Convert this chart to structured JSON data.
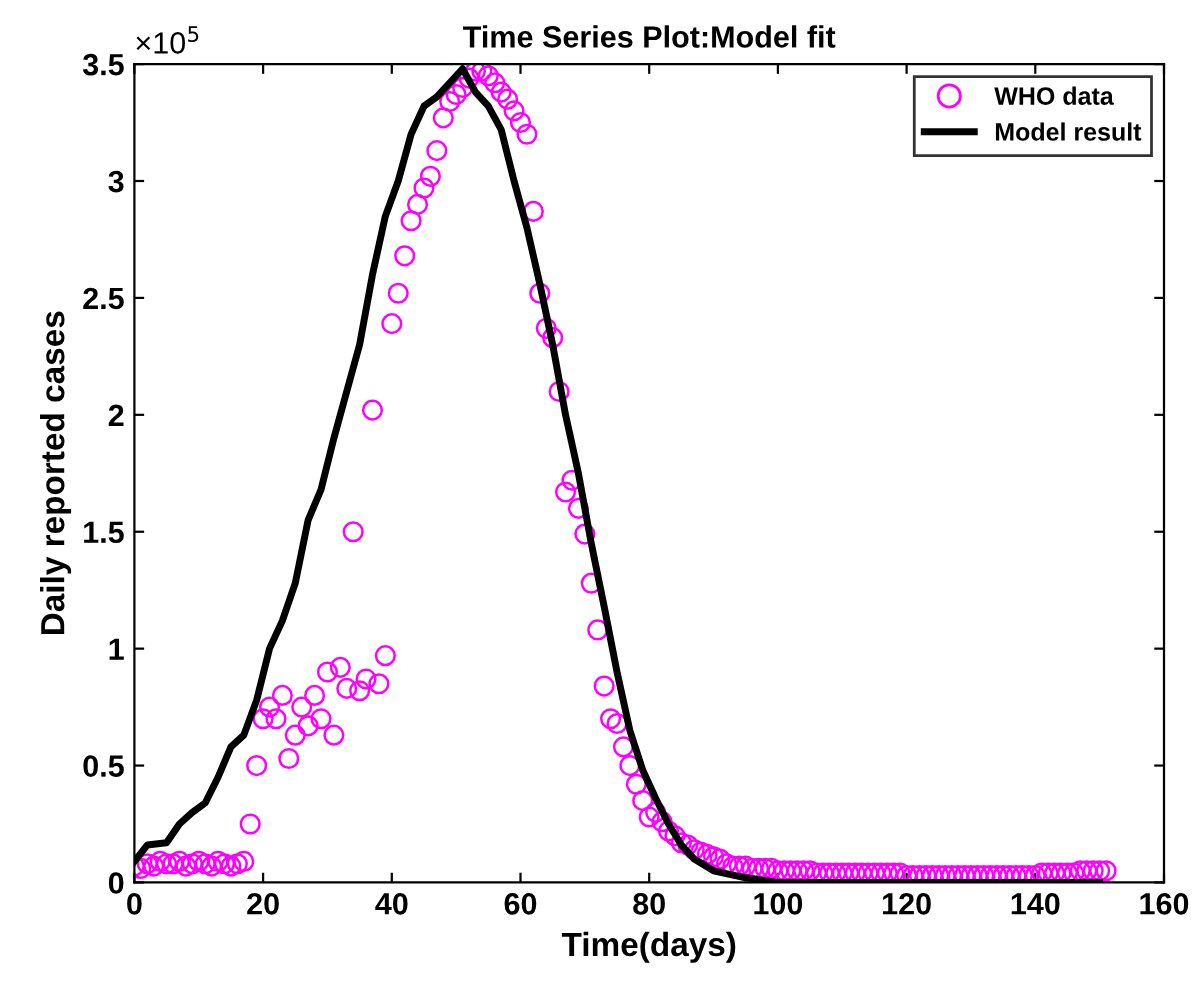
{
  "chart_data": {
    "type": "scatter",
    "title": "Time Series Plot:Model fit",
    "xlabel": "Time(days)",
    "ylabel": "Daily reported cases",
    "annotations": [
      "×10$^{5}$"
    ],
    "series": [
      {
        "name": "WHO data",
        "marker": "circle",
        "color": "#ff00ff",
        "x": [
          0,
          1,
          2,
          3,
          4,
          5,
          6,
          7,
          8,
          9,
          10,
          11,
          12,
          13,
          14,
          15,
          16,
          17,
          18,
          19,
          20,
          21,
          22,
          23,
          24,
          25,
          26,
          27,
          28,
          29,
          30,
          31,
          32,
          33,
          34,
          35,
          36,
          37,
          38,
          39,
          40,
          41,
          42,
          43,
          44,
          45,
          46,
          47,
          48,
          49,
          50,
          51,
          52,
          53,
          54,
          55,
          56,
          57,
          58,
          59,
          60,
          61,
          62,
          63,
          64,
          65,
          66,
          67,
          68,
          69,
          70,
          71,
          72,
          73,
          74,
          75,
          76,
          77,
          78,
          79,
          80,
          81,
          82,
          83,
          84,
          85,
          86,
          87,
          88,
          89,
          90,
          91,
          92,
          93,
          94,
          95,
          96,
          97,
          98,
          99,
          100,
          101,
          102,
          103,
          104,
          105,
          106,
          107,
          108,
          109,
          110,
          111,
          112,
          113,
          114,
          115,
          116,
          117,
          118,
          119,
          120,
          121,
          122,
          123,
          124,
          125,
          126,
          127,
          128,
          129,
          130,
          131,
          132,
          133,
          134,
          135,
          136,
          137,
          138,
          139,
          140,
          141,
          142,
          143,
          144,
          145,
          146,
          147,
          148,
          149,
          150,
          151
        ],
        "values": [
          0.07,
          0.06,
          0.08,
          0.07,
          0.09,
          0.08,
          0.08,
          0.09,
          0.07,
          0.08,
          0.09,
          0.08,
          0.07,
          0.09,
          0.08,
          0.07,
          0.08,
          0.09,
          0.25,
          0.5,
          0.7,
          0.75,
          0.7,
          0.8,
          0.53,
          0.63,
          0.75,
          0.67,
          0.8,
          0.7,
          0.9,
          0.63,
          0.92,
          0.83,
          1.5,
          0.82,
          0.87,
          2.02,
          0.85,
          0.97,
          2.39,
          2.52,
          2.68,
          2.83,
          2.9,
          2.97,
          3.02,
          3.13,
          3.27,
          3.34,
          3.37,
          3.4,
          3.44,
          3.47,
          3.47,
          3.45,
          3.42,
          3.38,
          3.35,
          3.3,
          3.25,
          3.2,
          2.87,
          2.52,
          2.37,
          2.33,
          2.1,
          1.67,
          1.72,
          1.6,
          1.49,
          1.28,
          1.08,
          0.84,
          0.7,
          0.68,
          0.58,
          0.5,
          0.42,
          0.35,
          0.28,
          0.3,
          0.26,
          0.22,
          0.2,
          0.17,
          0.16,
          0.14,
          0.13,
          0.12,
          0.11,
          0.1,
          0.08,
          0.07,
          0.07,
          0.07,
          0.06,
          0.06,
          0.06,
          0.06,
          0.05,
          0.05,
          0.05,
          0.05,
          0.05,
          0.05,
          0.04,
          0.04,
          0.04,
          0.04,
          0.04,
          0.04,
          0.04,
          0.04,
          0.04,
          0.04,
          0.04,
          0.04,
          0.04,
          0.04,
          0.03,
          0.03,
          0.03,
          0.03,
          0.03,
          0.03,
          0.03,
          0.03,
          0.03,
          0.03,
          0.03,
          0.03,
          0.03,
          0.03,
          0.03,
          0.03,
          0.03,
          0.03,
          0.03,
          0.03,
          0.03,
          0.04,
          0.04,
          0.04,
          0.04,
          0.04,
          0.04,
          0.05,
          0.05,
          0.05,
          0.05,
          0.05
        ]
      },
      {
        "name": "Model result",
        "type": "line",
        "marker": "none",
        "line_style": "solid",
        "color": "#000000",
        "x": [
          0,
          2,
          5,
          7,
          9,
          11,
          13,
          15,
          17,
          19,
          21,
          23,
          25,
          27,
          29,
          31,
          33,
          35,
          37,
          39,
          41,
          43,
          45,
          47,
          49,
          51,
          53,
          55,
          57,
          59,
          61,
          63,
          65,
          67,
          69,
          71,
          73,
          75,
          77,
          79,
          81,
          83,
          85,
          87,
          90,
          95,
          100,
          110,
          150
        ],
        "values": [
          0.09,
          0.16,
          0.17,
          0.25,
          0.3,
          0.34,
          0.45,
          0.58,
          0.63,
          0.78,
          1.0,
          1.12,
          1.28,
          1.55,
          1.68,
          1.9,
          2.1,
          2.3,
          2.6,
          2.85,
          3.0,
          3.2,
          3.32,
          3.36,
          3.42,
          3.48,
          3.38,
          3.32,
          3.22,
          3.0,
          2.8,
          2.56,
          2.3,
          2.0,
          1.75,
          1.45,
          1.18,
          0.9,
          0.65,
          0.48,
          0.36,
          0.25,
          0.16,
          0.1,
          0.05,
          0.02,
          0.0,
          0.0,
          0.0
        ]
      }
    ],
    "xlim": [
      0,
      160
    ],
    "xticks": [
      0,
      20,
      40,
      60,
      80,
      100,
      120,
      140,
      160
    ],
    "ylim": [
      0,
      3.5
    ],
    "yticks": [
      0,
      0.5,
      1,
      1.5,
      2,
      2.5,
      3,
      3.5
    ],
    "grid": false,
    "legend": "top right"
  }
}
